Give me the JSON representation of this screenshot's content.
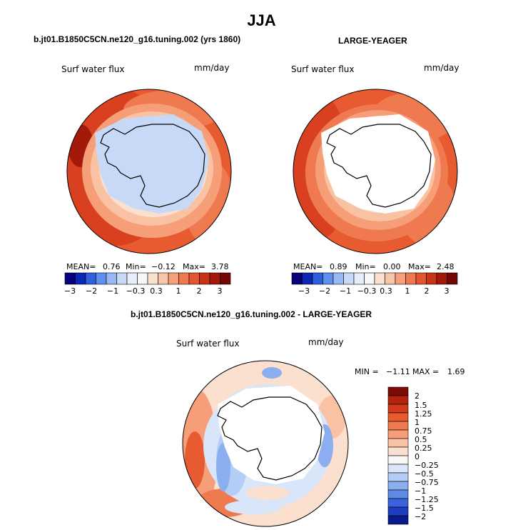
{
  "figure": {
    "season_title": "JJA"
  },
  "panels": [
    {
      "title": "b.jt01.B1850C5CN.ne120_g16.tuning.002 (yrs 1860)",
      "variable_label": "Surf water flux",
      "units_label": "mm/day",
      "stats": {
        "mean_label": "MEAN=",
        "mean": "0.76",
        "min_label": "Min=",
        "min": "−0.12",
        "max_label": "Max=",
        "max": "3.78"
      }
    },
    {
      "title": "LARGE-YEAGER",
      "variable_label": "Surf water flux",
      "units_label": "mm/day",
      "stats": {
        "mean_label": "MEAN=",
        "mean": "0.89",
        "min_label": "Min=",
        "min": "0.00",
        "max_label": "Max=",
        "max": "2.48"
      }
    }
  ],
  "difference_panel": {
    "title": "b.jt01.B1850C5CN.ne120_g16.tuning.002 - LARGE-YEAGER",
    "variable_label": "Surf water flux",
    "units_label": "mm/day",
    "stats": {
      "min_label": "MIN =",
      "min": "−1.11",
      "max_label": "MAX =",
      "max": "1.69"
    }
  },
  "horizontal_colorbar": {
    "tick_labels": [
      "−3",
      "−2",
      "−1",
      "−0.3",
      "0.3",
      "1",
      "2",
      "3"
    ],
    "colors": [
      "#08007a",
      "#0b27b5",
      "#2f5fde",
      "#5f8ff0",
      "#97b8f5",
      "#c8d9f8",
      "#e6eefb",
      "#f7f7f7",
      "#fbe0d0",
      "#f9c5a8",
      "#f6a07a",
      "#f07a50",
      "#e4542f",
      "#c93417",
      "#a31a0b",
      "#750604"
    ]
  },
  "vertical_colorbar": {
    "levels": [
      "2",
      "1.5",
      "1.25",
      "1",
      "0.75",
      "0.5",
      "0.25",
      "0",
      "−0.25",
      "−0.5",
      "−0.75",
      "−1",
      "−1.25",
      "−1.5",
      "−2"
    ],
    "colors": [
      "#7d0a03",
      "#b3230d",
      "#d33a1b",
      "#e85a30",
      "#f07a50",
      "#f59e78",
      "#f9c2a3",
      "#fbe0d0",
      "#f7f7f7",
      "#d9e6fa",
      "#b3cdf6",
      "#8aaef0",
      "#5f8be8",
      "#3a63dc",
      "#1e3ec2",
      "#0b1a8a"
    ]
  }
}
